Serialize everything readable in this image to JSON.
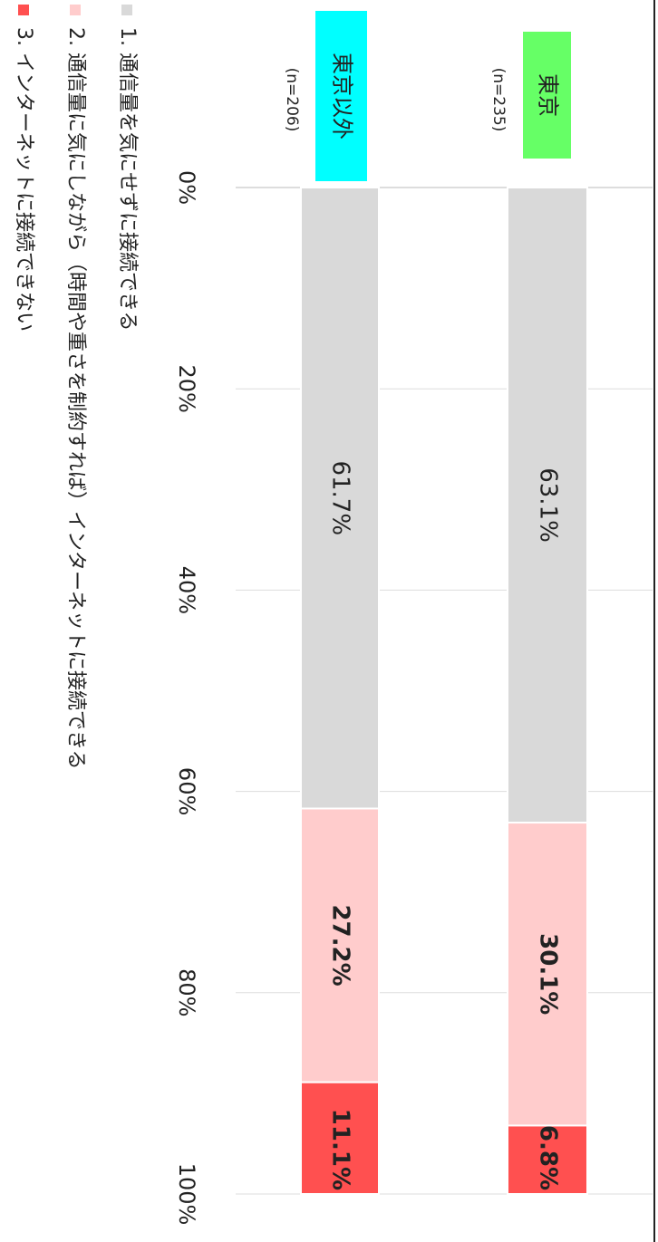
{
  "chart_data": {
    "type": "stacked_bar",
    "categories": [
      "東京",
      "東京以外"
    ],
    "category_notes": [
      "(n=235)",
      "(n=206)"
    ],
    "category_colors": [
      "#66ff66",
      "#00ffff"
    ],
    "series": [
      {
        "name": "1. 通信量を気にせずに接続できる",
        "color": "#d9d9d9",
        "values": [
          63.1,
          61.7
        ],
        "value_labels": [
          "63.1%",
          "61.7%"
        ]
      },
      {
        "name": "2. 通信量に気にしながら（時間や重さを制約すれば）インターネットに接続できる",
        "color": "#ffcccc",
        "values": [
          30.1,
          27.2
        ],
        "value_labels": [
          "30.1%",
          "27.2%"
        ]
      },
      {
        "name": "3. インターネットに接続できない",
        "color": "#ff5050",
        "values": [
          6.8,
          11.1
        ],
        "value_labels": [
          "6.8%",
          "11.1%"
        ]
      }
    ],
    "xlim": [
      0,
      100
    ],
    "xticks": [
      {
        "value": 0,
        "label": "0%"
      },
      {
        "value": 20,
        "label": "20%"
      },
      {
        "value": 40,
        "label": "40%"
      },
      {
        "value": 60,
        "label": "60%"
      },
      {
        "value": 80,
        "label": "80%"
      },
      {
        "value": 100,
        "label": "100%"
      }
    ],
    "grid": true
  }
}
